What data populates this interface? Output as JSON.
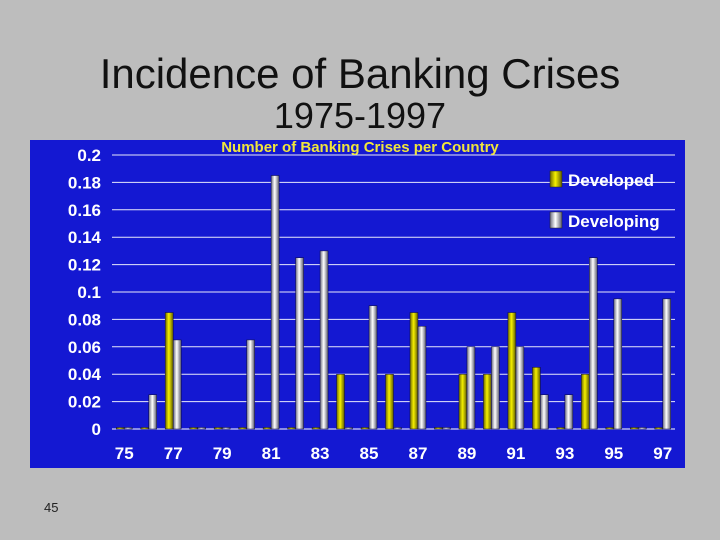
{
  "slide": {
    "title": "Incidence of Banking Crises",
    "subtitle": "1975-1997",
    "page_number": "45"
  },
  "colors": {
    "background": "#bdbdbd",
    "plot_background": "#1418d2",
    "developed": "#e0e000",
    "developing": "#e8e8f0",
    "chart_title": "#f0e63c",
    "axis_text": "#ffffff"
  },
  "chart_data": {
    "type": "bar",
    "title": "Number of Banking Crises per Country",
    "xlabel": "",
    "ylabel": "",
    "ylim": [
      0,
      0.2
    ],
    "yticks": [
      "0",
      "0.02",
      "0.04",
      "0.06",
      "0.08",
      "0.1",
      "0.12",
      "0.14",
      "0.16",
      "0.18",
      "0.2"
    ],
    "categories": [
      "75",
      "76",
      "77",
      "78",
      "79",
      "80",
      "81",
      "82",
      "83",
      "84",
      "85",
      "86",
      "87",
      "88",
      "89",
      "90",
      "91",
      "92",
      "93",
      "94",
      "95",
      "96",
      "97"
    ],
    "xtick_labels": [
      "75",
      "77",
      "79",
      "81",
      "83",
      "85",
      "87",
      "89",
      "91",
      "93",
      "95",
      "97"
    ],
    "legend_position": "right",
    "grid": true,
    "series": [
      {
        "name": "Developed",
        "values": [
          0,
          0,
          0.085,
          0,
          0,
          0,
          0,
          0,
          0,
          0.04,
          0,
          0.04,
          0.085,
          0,
          0.04,
          0.04,
          0.085,
          0.045,
          0,
          0.04,
          0,
          0,
          0
        ]
      },
      {
        "name": "Developing",
        "values": [
          0,
          0.025,
          0.065,
          0,
          0,
          0.065,
          0.185,
          0.125,
          0.13,
          0,
          0.09,
          0,
          0.075,
          0,
          0.06,
          0.06,
          0.06,
          0.025,
          0.025,
          0.125,
          0.095,
          0,
          0.095
        ]
      }
    ]
  }
}
